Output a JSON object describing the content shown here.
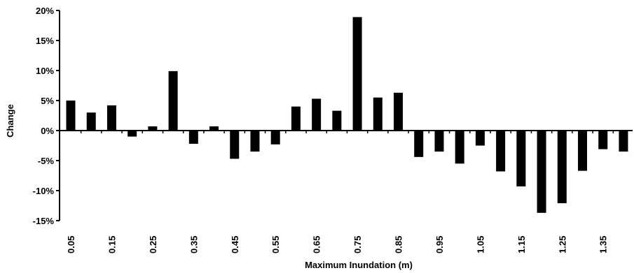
{
  "chart_data": {
    "type": "bar",
    "categories": [
      "0.05",
      "0.10",
      "0.15",
      "0.20",
      "0.25",
      "0.30",
      "0.35",
      "0.40",
      "0.45",
      "0.50",
      "0.55",
      "0.60",
      "0.65",
      "0.70",
      "0.75",
      "0.80",
      "0.85",
      "0.90",
      "0.95",
      "1.00",
      "1.05",
      "1.10",
      "1.15",
      "1.20",
      "1.25",
      "1.30",
      "1.35",
      "1.40"
    ],
    "x_tick_labels": [
      "0.05",
      "0.15",
      "0.25",
      "0.35",
      "0.45",
      "0.55",
      "0.65",
      "0.75",
      "0.85",
      "0.95",
      "1.05",
      "1.15",
      "1.25",
      "1.35"
    ],
    "values": [
      5.0,
      3.0,
      4.2,
      -1.0,
      0.7,
      9.9,
      -2.2,
      0.7,
      -4.7,
      -3.5,
      -2.3,
      4.0,
      5.3,
      3.3,
      18.9,
      5.5,
      6.3,
      -4.4,
      -3.5,
      -5.5,
      -2.5,
      -6.8,
      -9.3,
      -13.7,
      -12.1,
      -6.7,
      -3.1,
      -3.5
    ],
    "y_ticks": [
      20,
      15,
      10,
      5,
      0,
      -5,
      -10,
      -15
    ],
    "y_tick_labels": [
      "20%",
      "15%",
      "10%",
      "5%",
      "0%",
      "-5%",
      "-10%",
      "-15%"
    ],
    "ylim": [
      -15,
      20
    ],
    "xlabel": "Maximum Inundation (m)",
    "ylabel": "Change",
    "title": "",
    "grid": false,
    "bar_color": "#000000"
  }
}
